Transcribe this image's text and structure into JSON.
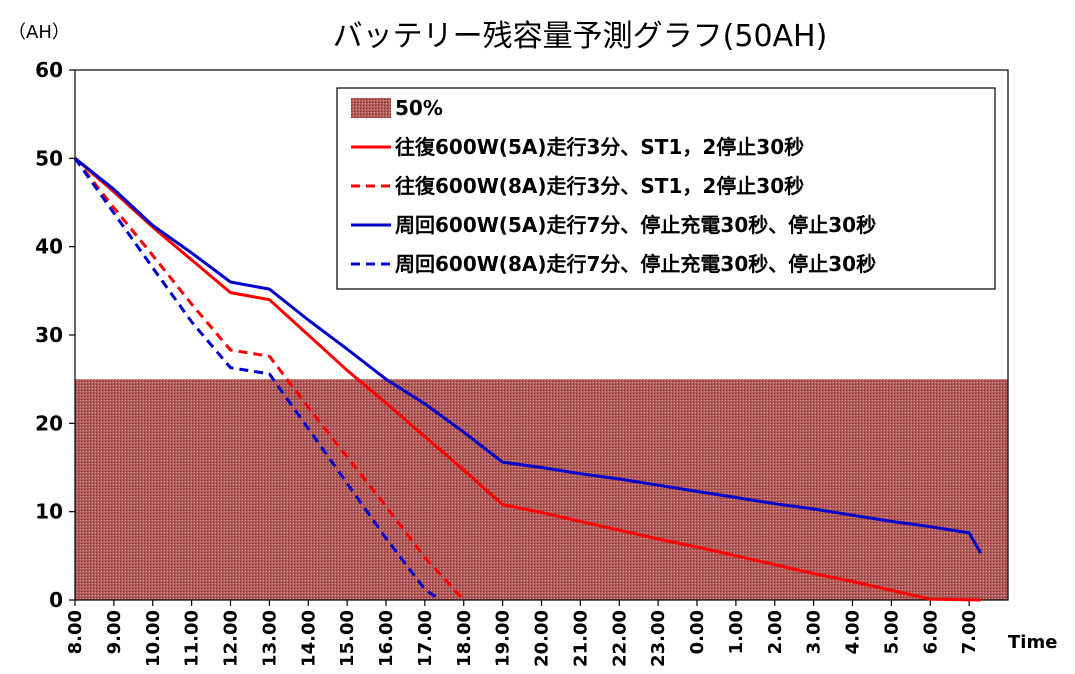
{
  "chart_data": {
    "type": "line",
    "title": "バッテリー残容量予測グラフ(50AH)",
    "ylabel": "（AH）",
    "xlabel": "Time",
    "ylim": [
      0,
      60
    ],
    "yticks": [
      0,
      10,
      20,
      30,
      40,
      50,
      60
    ],
    "categories": [
      "8.00",
      "9.00",
      "10.00",
      "11.00",
      "12.00",
      "13.00",
      "14.00",
      "15.00",
      "16.00",
      "17.00",
      "18.00",
      "19.00",
      "20.00",
      "21.00",
      "22.00",
      "23.00",
      "0.00",
      "1.00",
      "2.00",
      "3.00",
      "4.00",
      "5.00",
      "6.00",
      "7.00"
    ],
    "grid": false,
    "legend_position": "top-right",
    "threshold_band": {
      "name": "50%",
      "from": 0,
      "to": 25,
      "color": "#a84b4b"
    },
    "series": [
      {
        "name": "往復600W(5A)走行3分、ST1，2停止30秒",
        "color": "#ff0000",
        "dash": false,
        "points": [
          [
            0,
            50
          ],
          [
            1,
            46.2
          ],
          [
            2,
            42.2
          ],
          [
            3,
            38.5
          ],
          [
            4,
            34.8
          ],
          [
            5,
            34
          ],
          [
            6,
            30
          ],
          [
            7,
            26
          ],
          [
            8,
            22.3
          ],
          [
            9,
            18.5
          ],
          [
            10,
            14.7
          ],
          [
            11,
            10.8
          ],
          [
            12,
            9.9
          ],
          [
            13,
            8.9
          ],
          [
            14,
            7.9
          ],
          [
            15,
            6.9
          ],
          [
            16,
            6
          ],
          [
            17,
            5
          ],
          [
            18,
            4
          ],
          [
            19,
            3
          ],
          [
            20,
            2.1
          ],
          [
            21,
            1.1
          ],
          [
            22,
            0.1
          ],
          [
            23.3,
            0
          ]
        ]
      },
      {
        "name": "往復600W(8A)走行3分、ST1，2停止30秒",
        "color": "#ff0000",
        "dash": true,
        "points": [
          [
            0,
            50
          ],
          [
            1,
            44.4
          ],
          [
            2,
            39
          ],
          [
            3,
            33.5
          ],
          [
            4,
            28.3
          ],
          [
            5,
            27.6
          ],
          [
            6,
            21.8
          ],
          [
            7,
            16.2
          ],
          [
            8,
            10.6
          ],
          [
            9,
            4.8
          ],
          [
            10,
            0
          ]
        ]
      },
      {
        "name": "周回600W(5A)走行7分、停止充電30秒、停止30秒",
        "color": "#0000cc",
        "dash": false,
        "points": [
          [
            0,
            50
          ],
          [
            1,
            46.5
          ],
          [
            2,
            42.4
          ],
          [
            3,
            39.3
          ],
          [
            4,
            36
          ],
          [
            5,
            35.2
          ],
          [
            6,
            31.7
          ],
          [
            7,
            28.4
          ],
          [
            8,
            25
          ],
          [
            9,
            22.2
          ],
          [
            10,
            19
          ],
          [
            11,
            15.6
          ],
          [
            12,
            15
          ],
          [
            13,
            14.3
          ],
          [
            14,
            13.7
          ],
          [
            15,
            13
          ],
          [
            16,
            12.3
          ],
          [
            17,
            11.6
          ],
          [
            18,
            10.9
          ],
          [
            19,
            10.3
          ],
          [
            20,
            9.6
          ],
          [
            21,
            8.9
          ],
          [
            22,
            8.3
          ],
          [
            23,
            7.6
          ],
          [
            23.3,
            5.3
          ]
        ]
      },
      {
        "name": "周回600W(8A)走行7分、停止充電30秒、停止30秒",
        "color": "#0000cc",
        "dash": true,
        "points": [
          [
            0,
            50
          ],
          [
            1,
            43.8
          ],
          [
            2,
            37.6
          ],
          [
            3,
            31.5
          ],
          [
            4,
            26.3
          ],
          [
            5,
            25.6
          ],
          [
            6,
            19.4
          ],
          [
            7,
            13.2
          ],
          [
            8,
            7
          ],
          [
            9,
            1.2
          ],
          [
            9.4,
            0
          ]
        ]
      }
    ]
  }
}
